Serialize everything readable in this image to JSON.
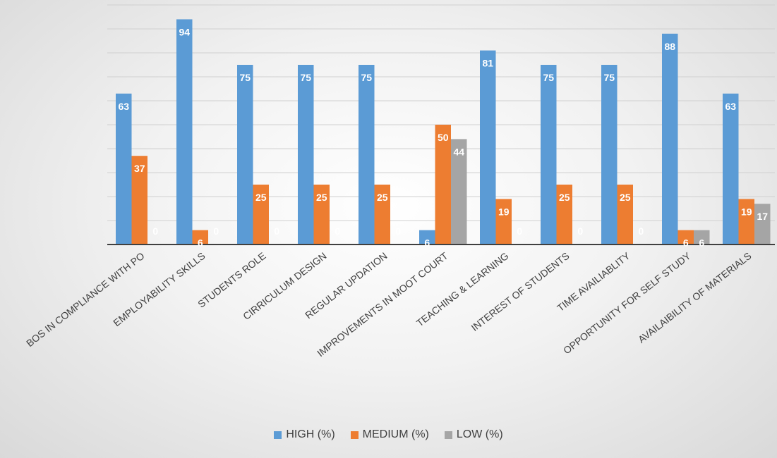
{
  "chart_data": {
    "type": "bar",
    "categories": [
      "BOS IN COMPLIANCE WITH PO",
      "EMPLOYABILITY SKILLS",
      "STUDENTS ROLE",
      "CIRRICULUM DESIGN",
      "REGULAR UPDATION",
      "IMPROVEMENTS IN MOOT COURT",
      "TEACHING & LEARNING",
      "INTEREST OF STUDENTS",
      "TIME AVAILIABLITY",
      "OPPORTUNITY FOR SELF STUDY",
      "AVAILAIBILITY OF MATERIALS"
    ],
    "series": [
      {
        "name": "HIGH (%)",
        "color": "#5b9bd5",
        "values": [
          63,
          94,
          75,
          75,
          75,
          6,
          81,
          75,
          75,
          88,
          63
        ]
      },
      {
        "name": "MEDIUM (%)",
        "color": "#ed7d31",
        "values": [
          37,
          6,
          25,
          25,
          25,
          50,
          19,
          25,
          25,
          6,
          19
        ]
      },
      {
        "name": "LOW (%)",
        "color": "#a5a5a5",
        "values": [
          0,
          0,
          0,
          0,
          0,
          44,
          0,
          0,
          0,
          6,
          17
        ]
      }
    ],
    "ylim": [
      0,
      100
    ],
    "grid": true,
    "legend_position": "bottom"
  }
}
